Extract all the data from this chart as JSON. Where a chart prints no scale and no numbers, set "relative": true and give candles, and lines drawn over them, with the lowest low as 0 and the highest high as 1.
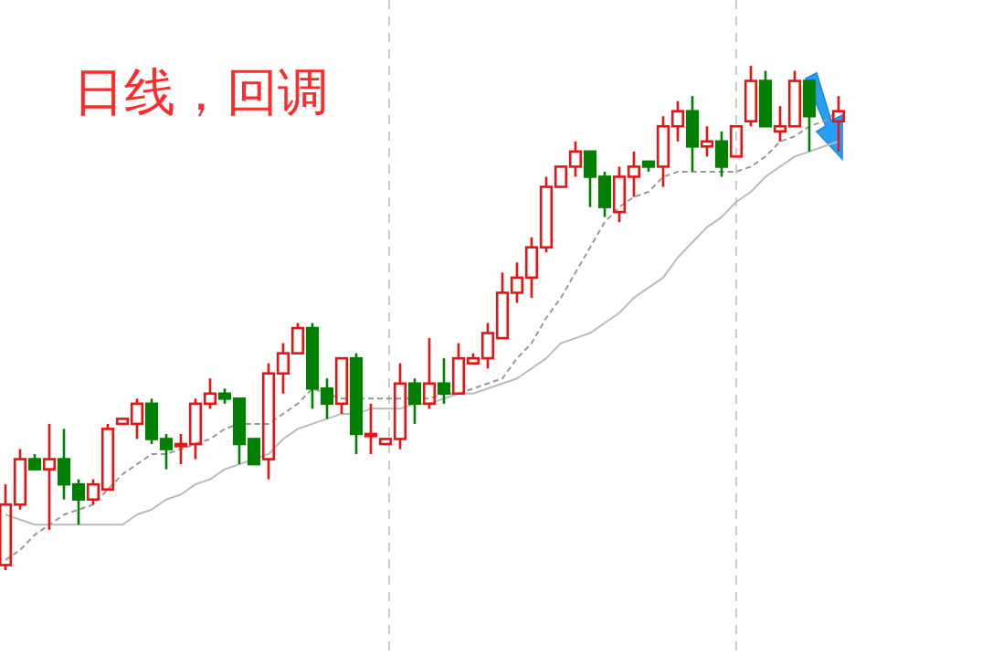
{
  "chart_data": {
    "type": "candlestick",
    "title": "日线，回调",
    "relative": true,
    "categories": [
      null,
      null,
      null,
      null,
      null,
      null,
      null,
      null,
      null,
      null,
      null,
      null,
      null,
      null,
      null,
      null,
      null,
      null,
      null,
      null,
      null,
      null,
      null,
      null,
      null,
      null,
      null,
      null,
      null,
      null,
      null,
      null,
      null,
      null,
      null,
      null,
      null,
      null,
      null,
      null,
      null,
      null,
      null,
      null,
      null,
      null,
      null,
      null,
      null,
      null,
      null,
      null,
      null,
      null,
      null,
      null,
      null,
      null
    ],
    "ohlc": [
      [
        0.01,
        0.17,
        0,
        0.13
      ],
      [
        0.13,
        0.24,
        0.12,
        0.22
      ],
      [
        0.22,
        0.23,
        0.2,
        0.2
      ],
      [
        0.2,
        0.29,
        0.08,
        0.22
      ],
      [
        0.22,
        0.28,
        0.14,
        0.17
      ],
      [
        0.17,
        0.18,
        0.09,
        0.14
      ],
      [
        0.14,
        0.18,
        0.13,
        0.17
      ],
      [
        0.16,
        0.29,
        0.16,
        0.28
      ],
      [
        0.29,
        0.3,
        0.29,
        0.3
      ],
      [
        0.29,
        0.34,
        0.26,
        0.33
      ],
      [
        0.33,
        0.34,
        0.25,
        0.26
      ],
      [
        0.26,
        0.27,
        0.2,
        0.24
      ],
      [
        0.25,
        0.27,
        0.21,
        0.25
      ],
      [
        0.25,
        0.34,
        0.22,
        0.33
      ],
      [
        0.33,
        0.38,
        0.32,
        0.35
      ],
      [
        0.35,
        0.36,
        0.33,
        0.34
      ],
      [
        0.34,
        0.34,
        0.21,
        0.25
      ],
      [
        0.26,
        0.26,
        0.21,
        0.21
      ],
      [
        0.22,
        0.41,
        0.18,
        0.39
      ],
      [
        0.39,
        0.45,
        0.35,
        0.43
      ],
      [
        0.43,
        0.49,
        0.43,
        0.48
      ],
      [
        0.48,
        0.49,
        0.32,
        0.36
      ],
      [
        0.36,
        0.38,
        0.3,
        0.33
      ],
      [
        0.33,
        0.42,
        0.31,
        0.42
      ],
      [
        0.42,
        0.43,
        0.23,
        0.27
      ],
      [
        0.27,
        0.33,
        0.23,
        0.27
      ],
      [
        0.25,
        0.26,
        0.25,
        0.26
      ],
      [
        0.26,
        0.41,
        0.24,
        0.37
      ],
      [
        0.37,
        0.38,
        0.29,
        0.33
      ],
      [
        0.33,
        0.46,
        0.32,
        0.37
      ],
      [
        0.37,
        0.42,
        0.33,
        0.35
      ],
      [
        0.35,
        0.45,
        0.35,
        0.42
      ],
      [
        0.41,
        0.43,
        0.41,
        0.42
      ],
      [
        0.42,
        0.49,
        0.4,
        0.47
      ],
      [
        0.46,
        0.59,
        0.46,
        0.55
      ],
      [
        0.55,
        0.61,
        0.53,
        0.58
      ],
      [
        0.58,
        0.66,
        0.54,
        0.64
      ],
      [
        0.64,
        0.78,
        0.63,
        0.76
      ],
      [
        0.76,
        0.8,
        0.76,
        0.8
      ],
      [
        0.8,
        0.85,
        0.78,
        0.83
      ],
      [
        0.83,
        0.83,
        0.72,
        0.78
      ],
      [
        0.78,
        0.79,
        0.7,
        0.72
      ],
      [
        0.71,
        0.8,
        0.69,
        0.78
      ],
      [
        0.78,
        0.83,
        0.74,
        0.8
      ],
      [
        0.81,
        0.81,
        0.79,
        0.8
      ],
      [
        0.8,
        0.9,
        0.76,
        0.88
      ],
      [
        0.88,
        0.93,
        0.85,
        0.91
      ],
      [
        0.91,
        0.94,
        0.79,
        0.84
      ],
      [
        0.84,
        0.88,
        0.82,
        0.85
      ],
      [
        0.85,
        0.87,
        0.78,
        0.8
      ],
      [
        0.82,
        0.88,
        0.82,
        0.88
      ],
      [
        0.89,
        1,
        0.88,
        0.97
      ],
      [
        0.97,
        0.99,
        0.88,
        0.88
      ],
      [
        0.87,
        0.92,
        0.85,
        0.88
      ],
      [
        0.88,
        0.99,
        0.88,
        0.97
      ],
      [
        0.97,
        0.97,
        0.83,
        0.9
      ],
      null,
      [
        0.89,
        0.94,
        0.83,
        0.91
      ]
    ],
    "series": [
      {
        "type": "line",
        "color": "#999999",
        "line_style": "dashed",
        "values": [
          0.02,
          0.04,
          0.07,
          0.09,
          0.11,
          0.12,
          0.13,
          0.16,
          0.19,
          0.21,
          0.23,
          0.23,
          0.24,
          0.25,
          0.26,
          0.28,
          0.29,
          0.29,
          0.29,
          0.31,
          0.33,
          0.36,
          0.35,
          0.34,
          0.34,
          0.34,
          0.34,
          0.34,
          0.34,
          0.34,
          0.35,
          0.35,
          0.36,
          0.37,
          0.38,
          0.42,
          0.45,
          0.5,
          0.54,
          0.59,
          0.64,
          0.69,
          0.72,
          0.74,
          0.75,
          0.78,
          0.79,
          0.79,
          0.79,
          0.79,
          0.79,
          0.8,
          0.82,
          0.85,
          0.86,
          0.88,
          0.89,
          0.91
        ]
      },
      {
        "type": "line",
        "color": "#bbbbbb",
        "line_style": "solid",
        "values": [
          0.11,
          0.1,
          0.09,
          0.09,
          0.09,
          0.09,
          0.09,
          0.09,
          0.09,
          0.11,
          0.12,
          0.14,
          0.15,
          0.17,
          0.18,
          0.2,
          0.21,
          0.22,
          0.23,
          0.26,
          0.28,
          0.29,
          0.3,
          0.31,
          0.31,
          0.32,
          0.32,
          0.32,
          0.33,
          0.33,
          0.34,
          0.35,
          0.35,
          0.36,
          0.37,
          0.38,
          0.4,
          0.42,
          0.45,
          0.46,
          0.47,
          0.49,
          0.51,
          0.54,
          0.56,
          0.58,
          0.62,
          0.65,
          0.68,
          0.7,
          0.73,
          0.75,
          0.78,
          0.8,
          0.82,
          0.83,
          0.84,
          0.85
        ]
      }
    ]
  }
}
